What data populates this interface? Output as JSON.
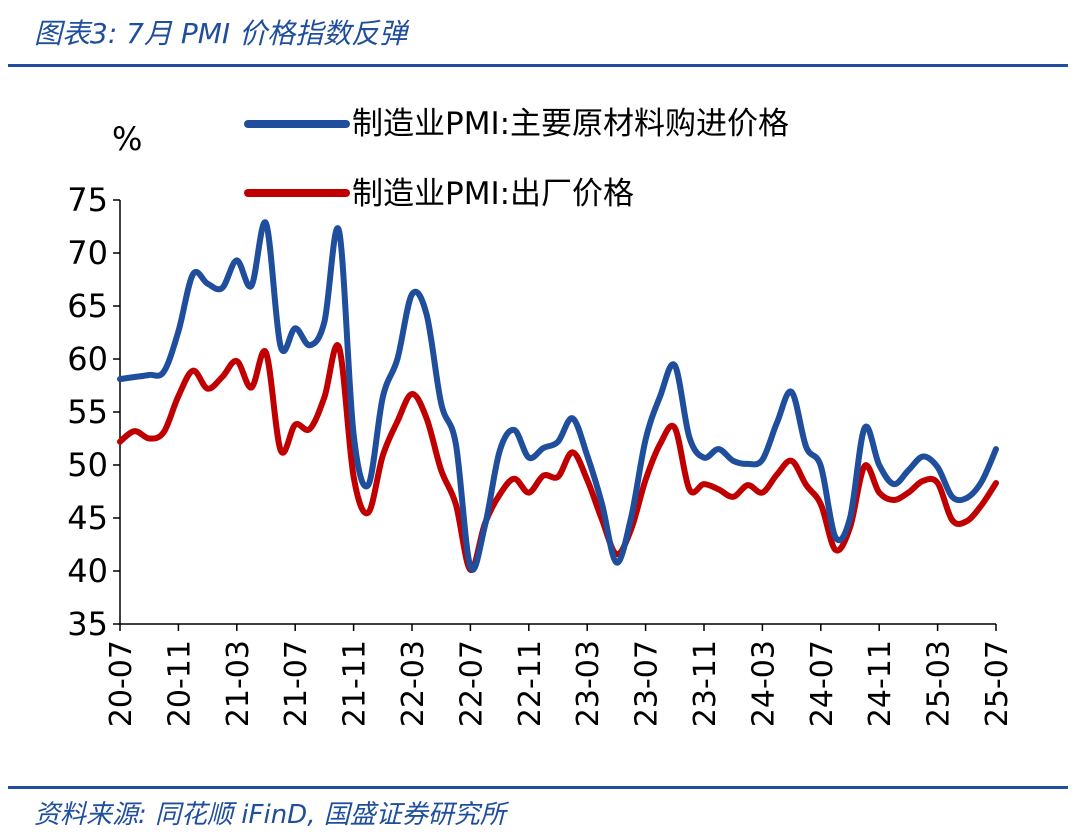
{
  "header": {
    "title": "图表3:  7月 PMI 价格指数反弹"
  },
  "footer": {
    "source": "资料来源:  同花顺 iFinD,  国盛证券研究所"
  },
  "chart_data": {
    "type": "line",
    "title": "",
    "xlabel": "",
    "ylabel": "%",
    "ylim": [
      35,
      75
    ],
    "yticks": [
      35,
      40,
      45,
      50,
      55,
      60,
      65,
      70,
      75
    ],
    "grid": false,
    "legend_position": "top",
    "x": [
      "20-07",
      "20-08",
      "20-09",
      "20-10",
      "20-11",
      "20-12",
      "21-01",
      "21-02",
      "21-03",
      "21-04",
      "21-05",
      "21-06",
      "21-07",
      "21-08",
      "21-09",
      "21-10",
      "21-11",
      "21-12",
      "22-01",
      "22-02",
      "22-03",
      "22-04",
      "22-05",
      "22-06",
      "22-07",
      "22-08",
      "22-09",
      "22-10",
      "22-11",
      "22-12",
      "23-01",
      "23-02",
      "23-03",
      "23-04",
      "23-05",
      "23-06",
      "23-07",
      "23-08",
      "23-09",
      "23-10",
      "23-11",
      "23-12",
      "24-01",
      "24-02",
      "24-03",
      "24-04",
      "24-05",
      "24-06",
      "24-07",
      "24-08",
      "24-09",
      "24-10",
      "24-11",
      "24-12",
      "25-01",
      "25-02",
      "25-03",
      "25-04",
      "25-05",
      "25-06",
      "25-07"
    ],
    "xtick_labels": [
      "20-07",
      "20-11",
      "21-03",
      "21-07",
      "21-11",
      "22-03",
      "22-07",
      "22-11",
      "23-03",
      "23-07",
      "23-11",
      "24-03",
      "24-07",
      "24-11",
      "25-03",
      "25-07"
    ],
    "series": [
      {
        "name": "制造业PMI:主要原材料购进价格",
        "color": "#1f4e9c",
        "values": [
          58.1,
          58.3,
          58.5,
          58.8,
          62.6,
          68.0,
          67.1,
          66.7,
          69.3,
          66.9,
          72.8,
          61.2,
          62.9,
          61.3,
          63.5,
          72.1,
          52.9,
          48.1,
          56.4,
          60.0,
          66.1,
          64.2,
          55.8,
          52.0,
          40.4,
          44.3,
          51.3,
          53.3,
          50.7,
          51.6,
          52.2,
          54.4,
          50.9,
          46.4,
          40.8,
          45.0,
          52.4,
          56.5,
          59.4,
          52.6,
          50.7,
          51.5,
          50.4,
          50.1,
          50.5,
          54.0,
          56.9,
          51.7,
          49.9,
          43.2,
          45.0,
          53.5,
          50.0,
          48.2,
          49.5,
          50.8,
          49.8,
          47.0,
          46.9,
          48.4,
          51.5
        ]
      },
      {
        "name": "制造业PMI:出厂价格",
        "color": "#c00000",
        "values": [
          52.2,
          53.2,
          52.5,
          53.1,
          56.5,
          58.9,
          57.2,
          58.3,
          59.8,
          57.3,
          60.6,
          51.4,
          53.8,
          53.4,
          56.4,
          61.1,
          48.9,
          45.5,
          50.9,
          54.1,
          56.7,
          54.4,
          49.5,
          46.3,
          40.1,
          44.5,
          47.2,
          48.7,
          47.4,
          49.0,
          48.9,
          51.2,
          48.6,
          44.9,
          41.6,
          43.9,
          48.6,
          52.0,
          53.5,
          47.7,
          48.2,
          47.7,
          47.0,
          48.1,
          47.4,
          49.1,
          50.4,
          48.1,
          46.3,
          42.0,
          44.1,
          49.9,
          47.4,
          46.7,
          47.4,
          48.5,
          48.3,
          44.8,
          44.7,
          46.2,
          48.3
        ]
      }
    ]
  }
}
